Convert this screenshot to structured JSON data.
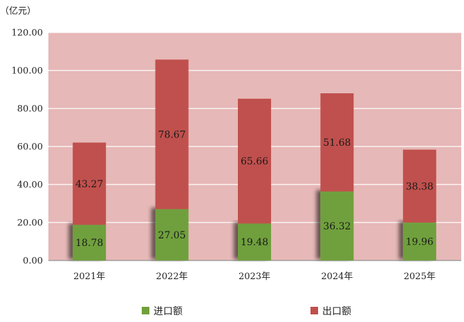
{
  "chart_data": {
    "type": "bar",
    "stacked": true,
    "unit_label": "（亿元）",
    "categories": [
      "2021年",
      "2022年",
      "2023年",
      "2024年",
      "2025年"
    ],
    "series": [
      {
        "name": "进口额",
        "color": "#70a03c",
        "values": [
          18.78,
          27.05,
          19.48,
          36.32,
          19.96
        ]
      },
      {
        "name": "出口额",
        "color": "#c0504d",
        "values": [
          43.27,
          78.67,
          65.66,
          51.68,
          38.38
        ]
      }
    ],
    "ylim": [
      0,
      120
    ],
    "yticks": [
      "0.00",
      "20.00",
      "40.00",
      "60.00",
      "80.00",
      "100.00",
      "120.00"
    ],
    "grid": true,
    "plot_background": "#e6b8b7",
    "legend_position": "bottom"
  }
}
